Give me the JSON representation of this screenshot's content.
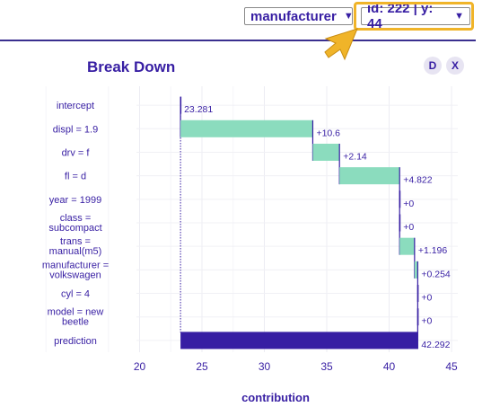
{
  "controls": {
    "variable_select": {
      "value": "manufacturer"
    },
    "observation_select": {
      "value": "id: 222 | y: 44"
    },
    "buttons": {
      "d": "D",
      "x": "X"
    },
    "colors": {
      "accent": "#371ea3",
      "highlight": "#f0b429",
      "pointer": "#f0b429"
    }
  },
  "chart_data": {
    "type": "waterfall",
    "title": "Break Down",
    "xlabel": "contribution",
    "xlim": [
      19,
      46
    ],
    "xticks": [
      20,
      25,
      30,
      35,
      40,
      45
    ],
    "baseline": 23.281,
    "grid": true,
    "colors": {
      "positive": "#8bdcbe",
      "prediction": "#371ea3",
      "connector": "#371ea3"
    },
    "bars": [
      {
        "label": [
          "intercept"
        ],
        "start": 23.281,
        "end": 23.281,
        "text": "23.281",
        "kind": "intercept"
      },
      {
        "label": [
          "displ = 1.9"
        ],
        "start": 23.281,
        "end": 33.881,
        "text": "+10.6",
        "kind": "positive"
      },
      {
        "label": [
          "drv = f"
        ],
        "start": 33.881,
        "end": 36.021,
        "text": "+2.14",
        "kind": "positive"
      },
      {
        "label": [
          "fl = d"
        ],
        "start": 36.021,
        "end": 40.843,
        "text": "+4.822",
        "kind": "positive"
      },
      {
        "label": [
          "year = 1999"
        ],
        "start": 40.843,
        "end": 40.843,
        "text": "+0",
        "kind": "zero"
      },
      {
        "label": [
          "class =",
          "subcompact"
        ],
        "start": 40.843,
        "end": 40.843,
        "text": "+0",
        "kind": "zero"
      },
      {
        "label": [
          "trans =",
          "manual(m5)"
        ],
        "start": 40.843,
        "end": 42.039,
        "text": "+1.196",
        "kind": "positive"
      },
      {
        "label": [
          "manufacturer =",
          "volkswagen"
        ],
        "start": 42.039,
        "end": 42.293,
        "text": "+0.254",
        "kind": "positive"
      },
      {
        "label": [
          "cyl = 4"
        ],
        "start": 42.293,
        "end": 42.293,
        "text": "+0",
        "kind": "zero"
      },
      {
        "label": [
          "model = new",
          "beetle"
        ],
        "start": 42.293,
        "end": 42.293,
        "text": "+0",
        "kind": "zero"
      },
      {
        "label": [
          "prediction"
        ],
        "start": 23.281,
        "end": 42.292,
        "text": "42.292",
        "kind": "prediction"
      }
    ]
  }
}
